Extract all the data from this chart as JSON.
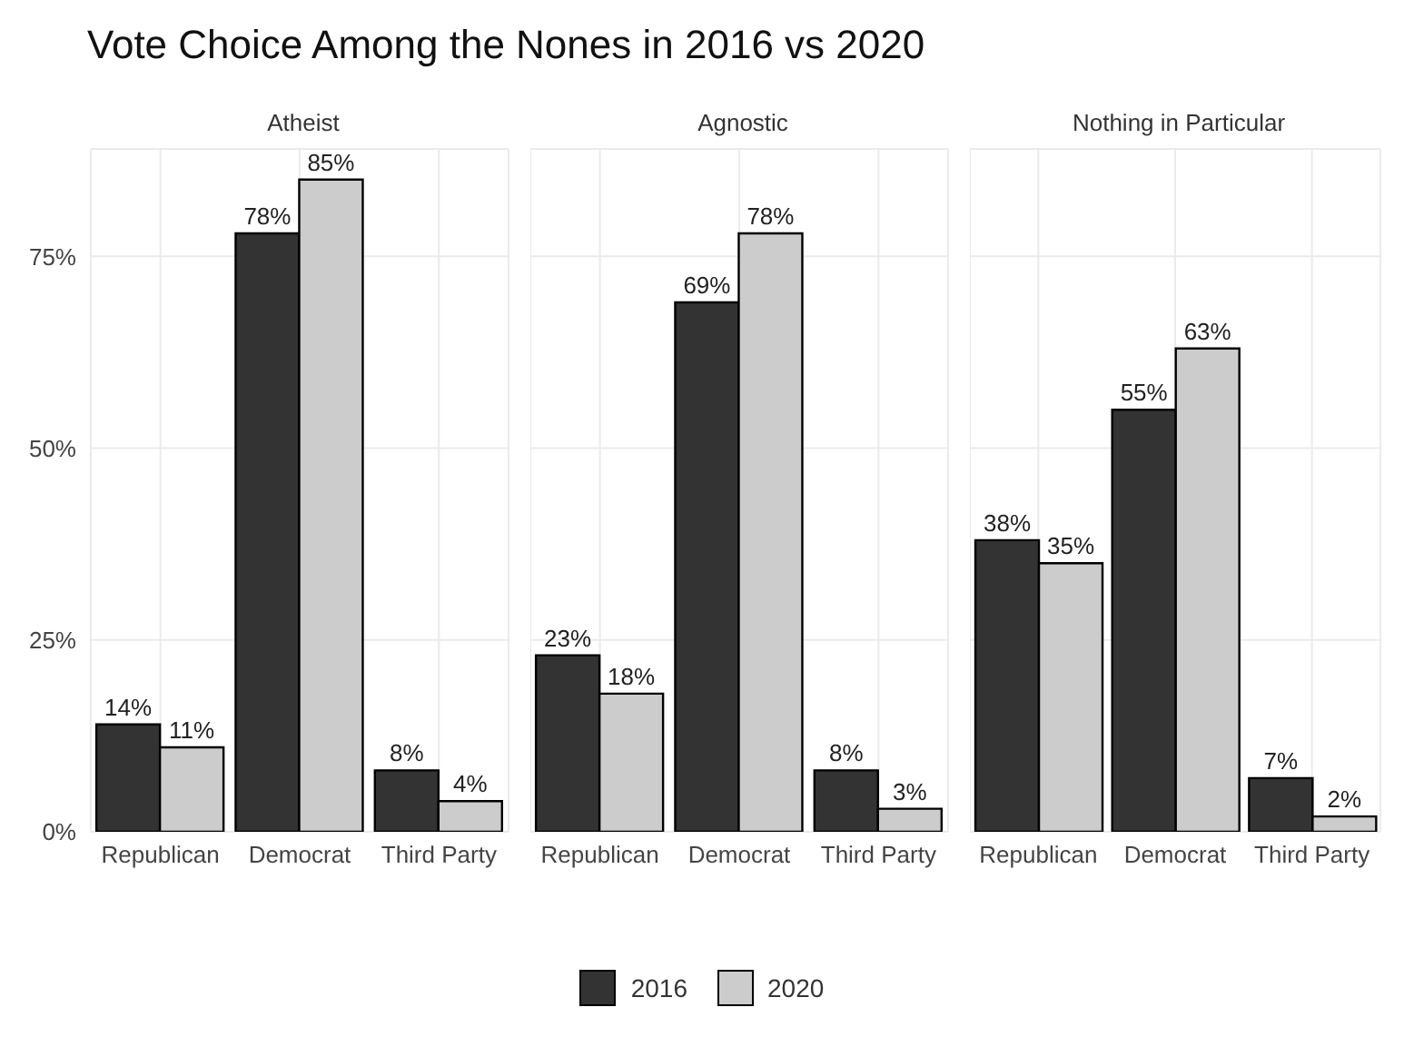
{
  "chart_data": [
    {
      "type": "bar",
      "title": "Vote Choice Among the Nones in 2016 vs 2020",
      "subtitle": "Atheist",
      "categories": [
        "Republican",
        "Democrat",
        "Third Party"
      ],
      "series": [
        {
          "name": "2016",
          "color": "#333333",
          "values": [
            14,
            78,
            8
          ],
          "value_labels": [
            "14%",
            "78%",
            "8%"
          ]
        },
        {
          "name": "2020",
          "color": "#cccccc",
          "values": [
            11,
            85,
            4
          ],
          "value_labels": [
            "11%",
            "85%",
            "4%"
          ]
        }
      ],
      "ylim": [
        0,
        89
      ],
      "yticks": [
        {
          "value": 0,
          "label": "0%"
        },
        {
          "value": 25,
          "label": "25%"
        },
        {
          "value": 50,
          "label": "50%"
        },
        {
          "value": 75,
          "label": "75%"
        }
      ],
      "grid": true,
      "legend": "bottom"
    },
    {
      "type": "bar",
      "subtitle": "Agnostic",
      "categories": [
        "Republican",
        "Democrat",
        "Third Party"
      ],
      "series": [
        {
          "color": "#333333",
          "values": [
            23,
            69,
            8
          ],
          "value_labels": [
            "23%",
            "69%",
            "8%"
          ]
        },
        {
          "color": "#cccccc",
          "values": [
            18,
            78,
            3
          ],
          "value_labels": [
            "18%",
            "78%",
            "3%"
          ]
        }
      ],
      "ylim": [
        0,
        89
      ],
      "yticks": [
        0,
        25,
        50,
        75
      ],
      "grid": true,
      "tick_labels": "x"
    },
    {
      "type": "bar",
      "subtitle": "Nothing in Particular",
      "categories": [
        "Republican",
        "Democrat",
        "Third Party"
      ],
      "series": [
        {
          "color": "#333333",
          "values": [
            38,
            55,
            7
          ],
          "value_labels": [
            "38%",
            "55%",
            "7%"
          ]
        },
        {
          "color": "#cccccc",
          "values": [
            35,
            63,
            2
          ],
          "value_labels": [
            "35%",
            "63%",
            "2%"
          ]
        }
      ],
      "ylim": [
        0,
        89
      ],
      "yticks": [
        0,
        25,
        50,
        75
      ],
      "grid": true,
      "legend": false,
      "tick_labels": "x"
    }
  ]
}
